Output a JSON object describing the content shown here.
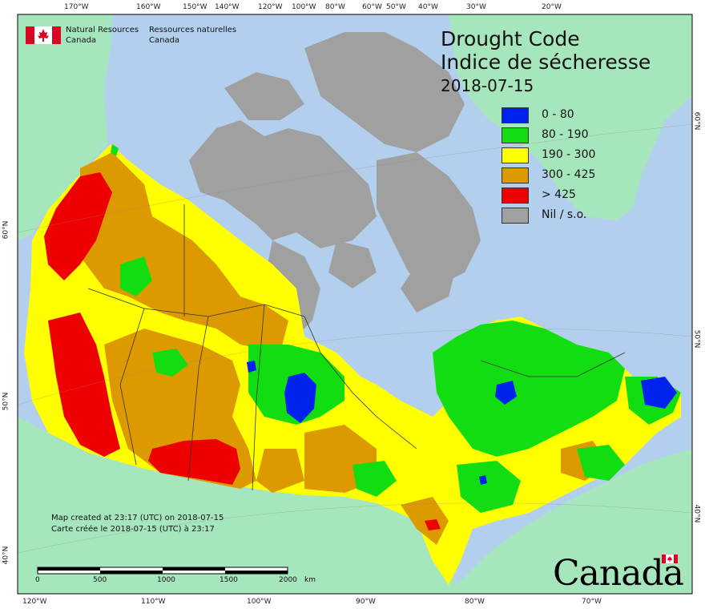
{
  "agency": {
    "name_en_line1": "Natural Resources",
    "name_en_line2": "Canada",
    "name_fr_line1": "Ressources naturelles",
    "name_fr_line2": "Canada"
  },
  "title": {
    "line1": "Drought Code",
    "line2": "Indice de sécheresse",
    "date": "2018-07-15"
  },
  "legend": [
    {
      "label": "0 - 80",
      "color": "#0022ee"
    },
    {
      "label": "80 - 190",
      "color": "#11dd11"
    },
    {
      "label": "190 - 300",
      "color": "#ffff00"
    },
    {
      "label": "300 - 425",
      "color": "#dd9900"
    },
    {
      "label": "> 425",
      "color": "#ee0000"
    },
    {
      "label": "Nil / s.o.",
      "color": "#a0a0a0"
    }
  ],
  "colors": {
    "ocean": "#b3cfee",
    "land_outside": "#a6e6bd",
    "nil_gray": "#a0a0a0",
    "border": "#333333"
  },
  "longitude_top": [
    "170°W",
    "160°W",
    "150°W",
    "140°W",
    "120°W",
    "100°W",
    "80°W",
    "60°W",
    "50°W",
    "40°W",
    "30°W",
    "20°W"
  ],
  "longitude_bottom": [
    "120°W",
    "110°W",
    "100°W",
    "90°W",
    "80°W",
    "70°W"
  ],
  "latitude_left": [
    "60°N",
    "50°N",
    "40°N"
  ],
  "latitude_right": [
    "60°N",
    "50°N",
    "40°N"
  ],
  "footer": {
    "created_en": "Map created at 23:17 (UTC) on 2018-07-15",
    "created_fr": "Carte créée le 2018-07-15 (UTC) à 23:17"
  },
  "scale_bar": {
    "labels": [
      "0",
      "500",
      "1000",
      "1500",
      "2000"
    ],
    "unit": "km"
  },
  "wordmark": "Canada"
}
